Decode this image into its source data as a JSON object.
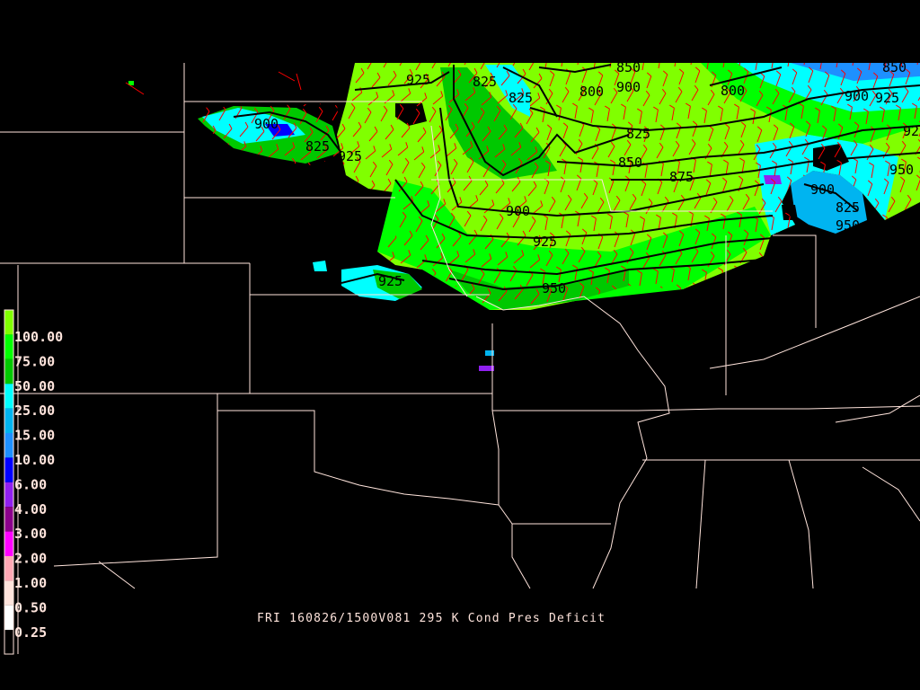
{
  "title": "FRI 160826/1500V081 295 K Cond Pres Deficit",
  "legend": {
    "labels": [
      "100.00",
      "75.00",
      "50.00",
      "25.00",
      "15.00",
      "10.00",
      "6.00",
      "4.00",
      "3.00",
      "2.00",
      "1.00",
      "0.50",
      "0.25"
    ],
    "colors": [
      "#80ff00",
      "#00ff00",
      "#00c800",
      "#00ffff",
      "#00b4f0",
      "#1e90ff",
      "#0000ff",
      "#9020f0",
      "#8b008b",
      "#ff00ff",
      "#ffa8b4",
      "#ffe4dc",
      "#ffffff",
      "#000000"
    ]
  },
  "contour_labels": [
    "925",
    "825",
    "825",
    "800",
    "900",
    "850",
    "800",
    "825",
    "850",
    "875",
    "900",
    "925",
    "950",
    "925",
    "900",
    "825",
    "925",
    "900",
    "825",
    "950",
    "950",
    "900",
    "925",
    "850",
    "925"
  ],
  "colors": {
    "background": "#000000",
    "borders": "#ffe4dc",
    "wind_barbs": "#ff0000",
    "contours": "#000000"
  }
}
